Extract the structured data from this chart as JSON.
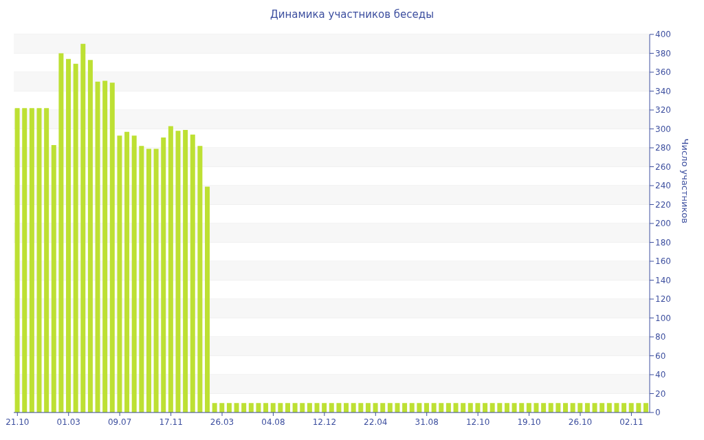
{
  "chart_data": {
    "type": "bar",
    "title": "Динамика участников беседы",
    "ylabel": "Число участников",
    "categories": [
      "21.10",
      null,
      null,
      null,
      null,
      null,
      null,
      "01.03",
      null,
      null,
      null,
      null,
      null,
      null,
      "09.07",
      null,
      null,
      null,
      null,
      null,
      null,
      "17.11",
      null,
      null,
      null,
      null,
      null,
      null,
      "26.03",
      null,
      null,
      null,
      null,
      null,
      null,
      "04.08",
      null,
      null,
      null,
      null,
      null,
      null,
      "12.12",
      null,
      null,
      null,
      null,
      null,
      null,
      "22.04",
      null,
      null,
      null,
      null,
      null,
      null,
      "31.08",
      null,
      null,
      null,
      null,
      null,
      null,
      "12.10",
      null,
      null,
      null,
      null,
      null,
      null,
      "19.10",
      null,
      null,
      null,
      null,
      null,
      null,
      "26.10",
      null,
      null,
      null,
      null,
      null,
      null,
      "02.11",
      null,
      null
    ],
    "values": [
      322,
      322,
      322,
      322,
      322,
      283,
      380,
      374,
      369,
      390,
      373,
      350,
      351,
      349,
      293,
      297,
      293,
      282,
      279,
      279,
      291,
      303,
      298,
      299,
      294,
      282,
      239,
      10,
      10,
      10,
      10,
      10,
      10,
      10,
      10,
      10,
      10,
      10,
      10,
      10,
      10,
      10,
      10,
      10,
      10,
      10,
      10,
      10,
      10,
      10,
      10,
      10,
      10,
      10,
      10,
      10,
      10,
      10,
      10,
      10,
      10,
      10,
      10,
      10,
      10,
      10,
      10,
      10,
      10,
      10,
      10,
      10,
      10,
      10,
      10,
      10,
      10,
      10,
      10,
      10,
      10,
      10,
      10,
      10,
      10,
      10,
      10
    ],
    "color": "#bde033",
    "ylim": [
      0,
      400
    ],
    "yticks": [
      0,
      20,
      40,
      60,
      80,
      100,
      120,
      140,
      160,
      180,
      200,
      220,
      240,
      260,
      280,
      300,
      320,
      340,
      360,
      380,
      400
    ],
    "grid": "y"
  }
}
